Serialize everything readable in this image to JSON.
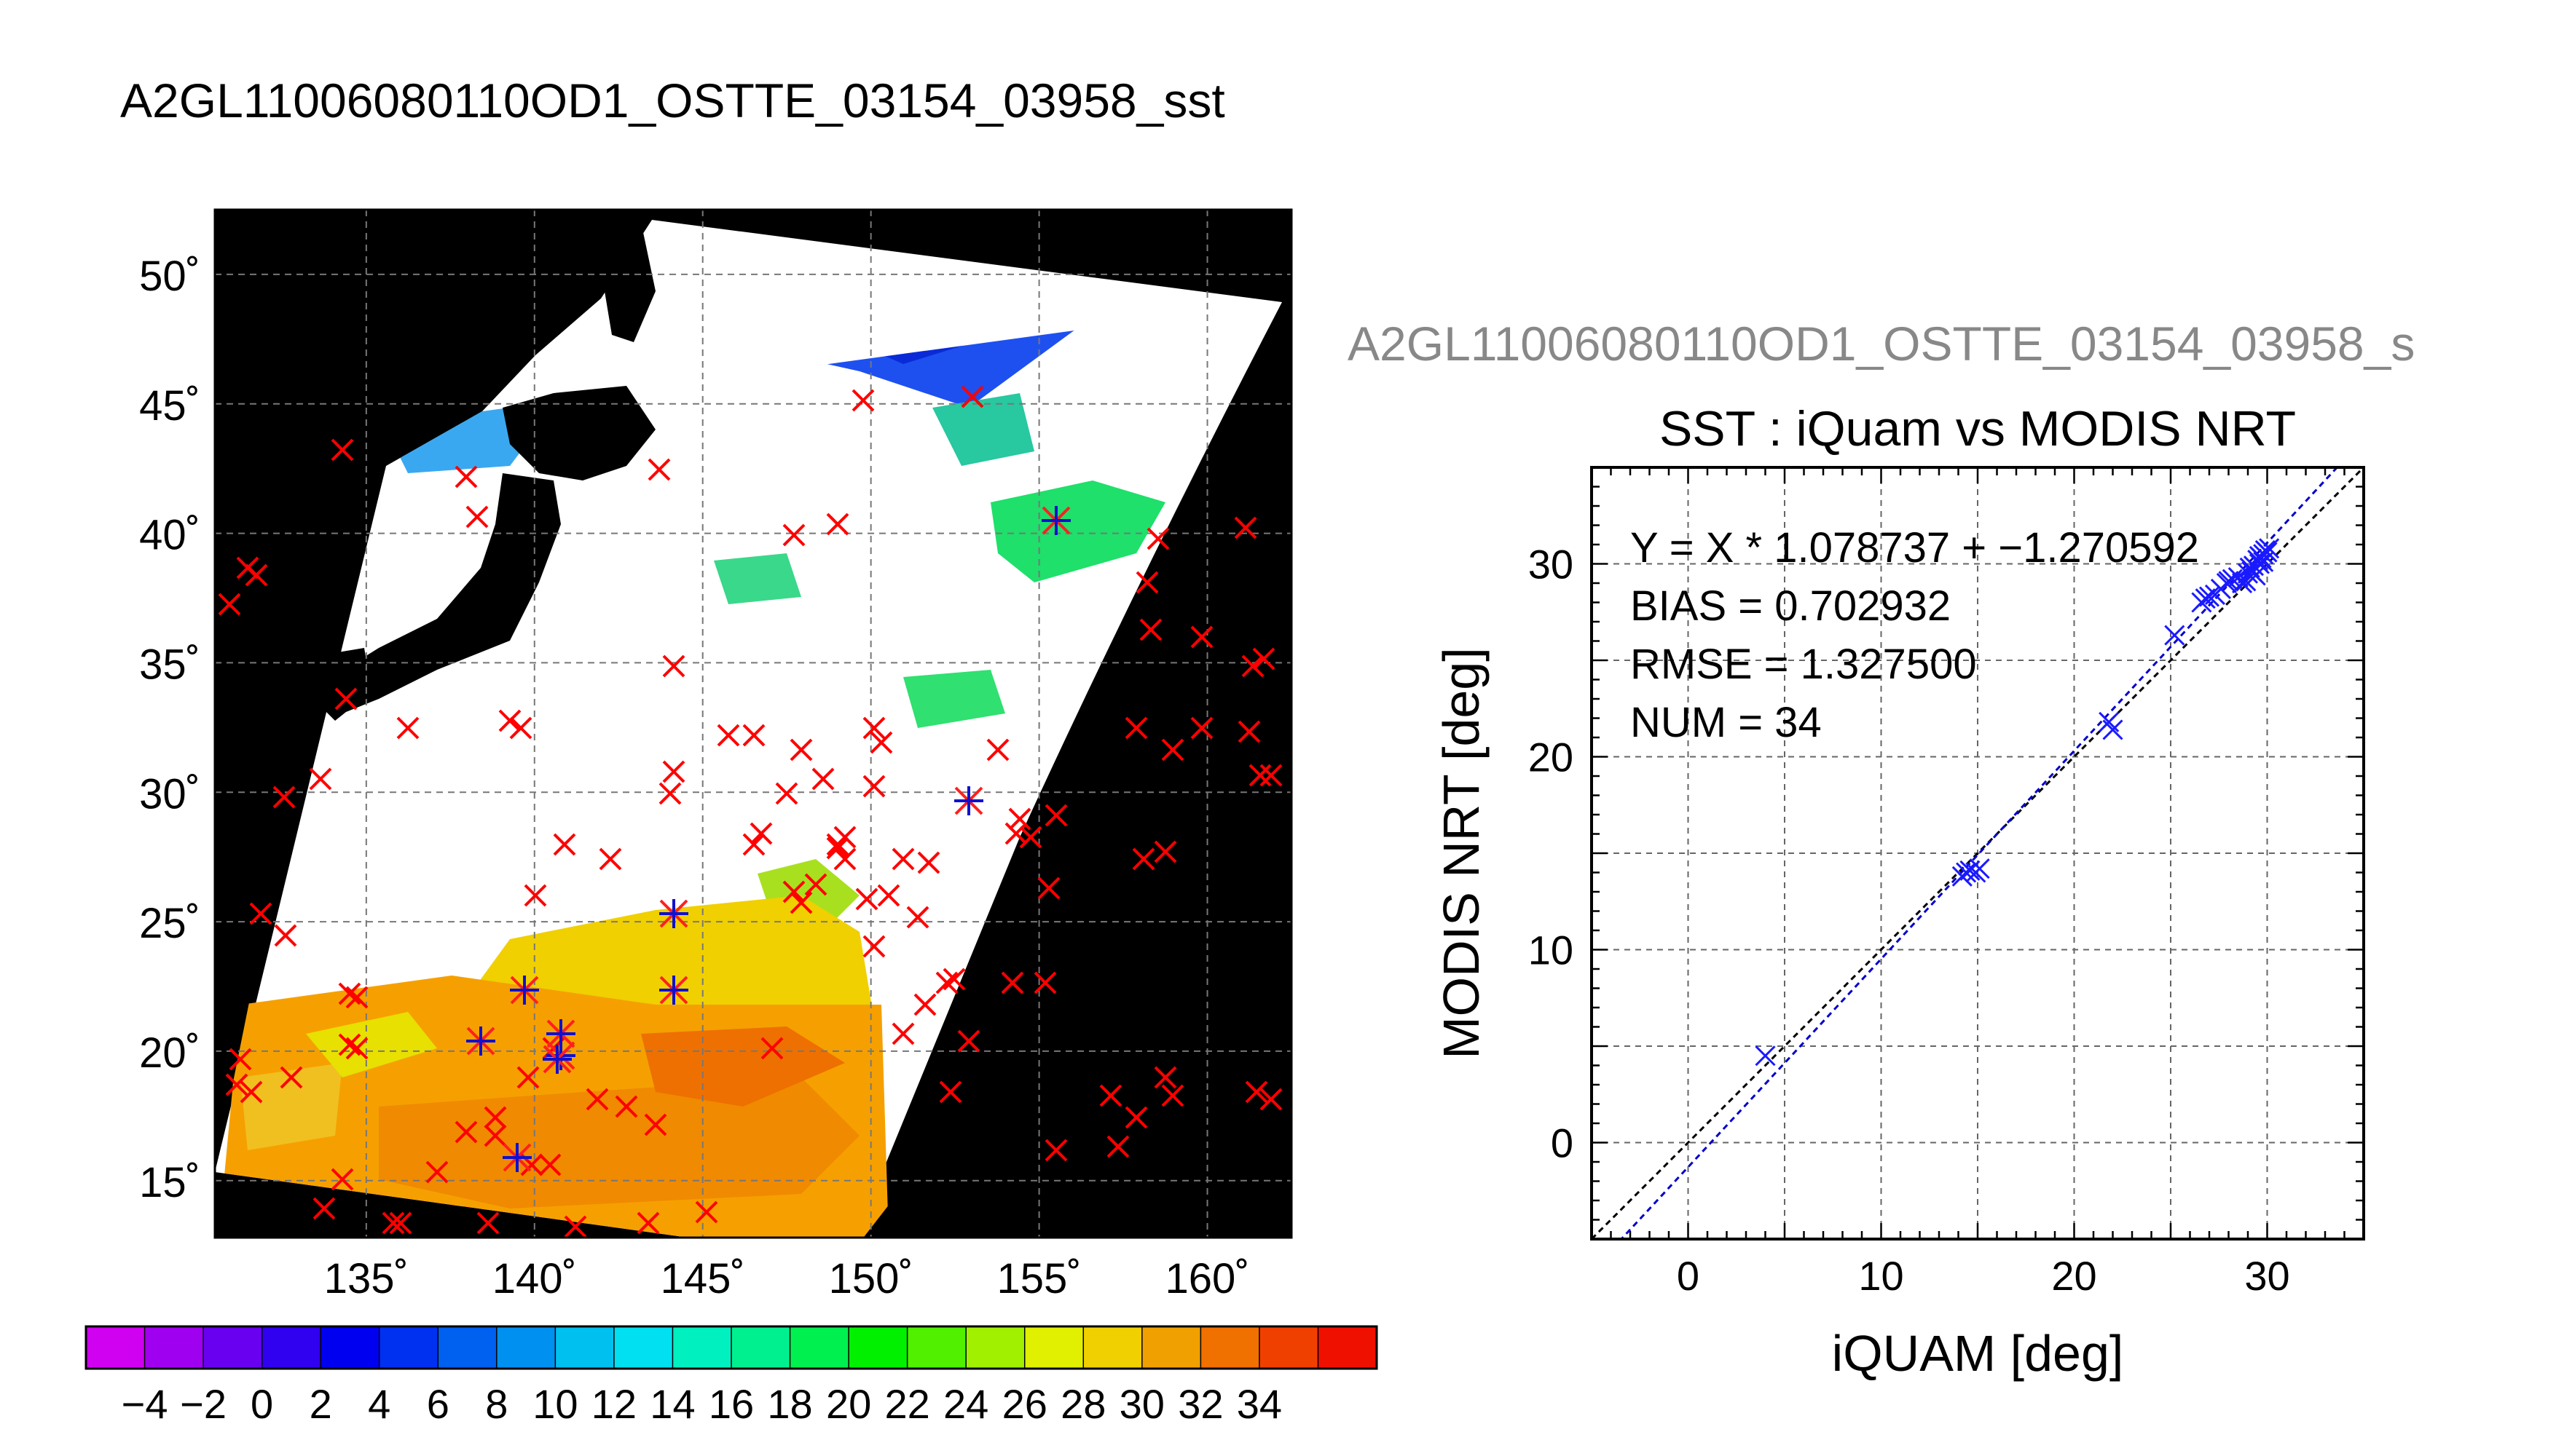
{
  "main_title": "A2GL11006080110OD1_OSTTE_03154_03958_sst",
  "scatter_header": "A2GL11006080110OD1_OSTTE_03154_03958_s",
  "map": {
    "lat_ticks": [
      15,
      20,
      25,
      30,
      35,
      40,
      45,
      50
    ],
    "lat_labels": [
      "15˚",
      "20˚",
      "25˚",
      "30˚",
      "35˚",
      "40˚",
      "45˚",
      "50˚"
    ],
    "lon_ticks": [
      135,
      140,
      145,
      150,
      155,
      160
    ],
    "lon_labels": [
      "135˚",
      "140˚",
      "145˚",
      "150˚",
      "155˚",
      "160˚"
    ],
    "lon_range": [
      130.5,
      162.5
    ],
    "lat_range": [
      12.8,
      52.5
    ]
  },
  "colorbar": {
    "tick_labels": [
      "−4",
      "−2",
      "0",
      "2",
      "4",
      "6",
      "8",
      "10",
      "12",
      "14",
      "16",
      "18",
      "20",
      "22",
      "24",
      "26",
      "28",
      "30",
      "32",
      "34"
    ],
    "colors": [
      "#d000f0",
      "#a000f0",
      "#6a00f0",
      "#3000f0",
      "#0000f0",
      "#0030f0",
      "#0060f0",
      "#0090f0",
      "#00c0f0",
      "#00e0f0",
      "#00f0c0",
      "#00f090",
      "#00f050",
      "#00f000",
      "#50f000",
      "#a0f000",
      "#e0f000",
      "#f0d000",
      "#f0a000",
      "#f07000",
      "#f04000",
      "#f01000"
    ]
  },
  "chart_data": {
    "type": "scatter",
    "title": "SST : iQuam vs MODIS NRT",
    "xlabel": "iQUAM [deg]",
    "ylabel": "MODIS NRT [deg]",
    "xlim": [
      -5,
      35
    ],
    "ylim": [
      -5,
      35
    ],
    "xticks": [
      0,
      10,
      20,
      30
    ],
    "yticks": [
      0,
      10,
      20,
      30
    ],
    "grid": true,
    "annotations": [
      "Y = X * 1.078737 + −1.270592",
      "BIAS = 0.702932",
      "RMSE = 1.327500",
      "NUM = 34"
    ],
    "fit": {
      "slope": 1.078737,
      "intercept": -1.270592,
      "color": "#0000cc"
    },
    "identity_color": "#000000",
    "marker_color": "#1a1aff",
    "points": [
      [
        4.0,
        4.5
      ],
      [
        14.2,
        13.8
      ],
      [
        14.4,
        14.0
      ],
      [
        14.6,
        14.1
      ],
      [
        14.9,
        14.0
      ],
      [
        15.1,
        14.2
      ],
      [
        21.8,
        21.8
      ],
      [
        22.0,
        21.4
      ],
      [
        25.2,
        26.3
      ],
      [
        26.8,
        28.2
      ],
      [
        27.0,
        28.3
      ],
      [
        27.3,
        28.4
      ],
      [
        27.9,
        29.0
      ],
      [
        28.2,
        29.2
      ],
      [
        28.5,
        29.3
      ],
      [
        28.9,
        29.1
      ],
      [
        29.2,
        29.6
      ],
      [
        29.4,
        29.4
      ],
      [
        29.6,
        30.0
      ],
      [
        29.7,
        30.3
      ],
      [
        29.8,
        30.5
      ],
      [
        29.9,
        30.7
      ],
      [
        30.0,
        30.6
      ],
      [
        29.5,
        30.2
      ],
      [
        28.7,
        29.0
      ],
      [
        27.6,
        28.7
      ],
      [
        29.1,
        29.8
      ],
      [
        29.3,
        29.9
      ],
      [
        29.0,
        29.5
      ],
      [
        28.0,
        29.1
      ],
      [
        26.6,
        28.0
      ],
      [
        29.6,
        30.4
      ],
      [
        30.1,
        30.8
      ],
      [
        29.8,
        30.1
      ]
    ]
  }
}
